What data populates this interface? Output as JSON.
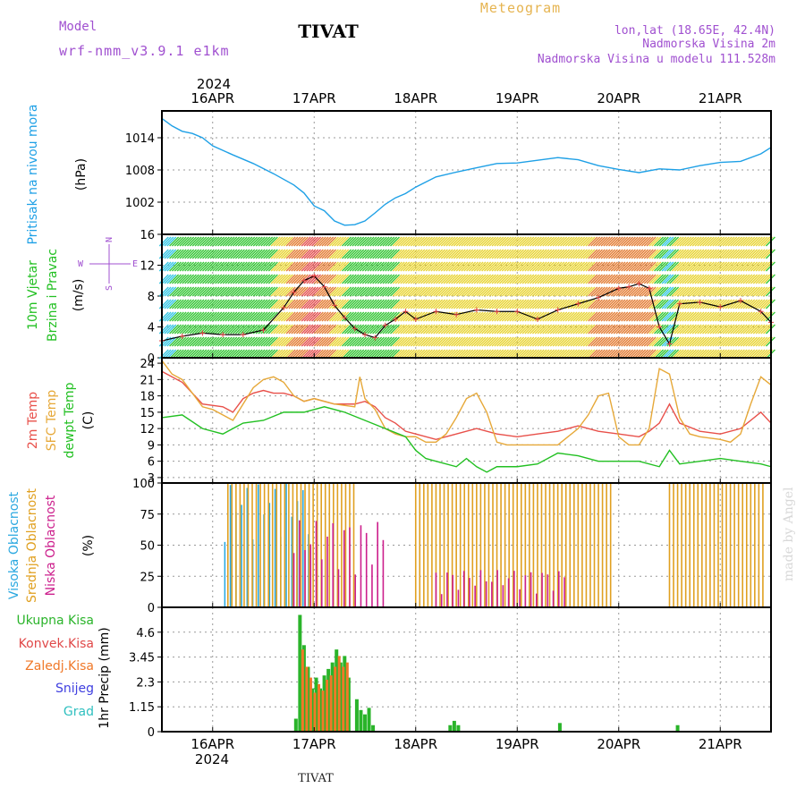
{
  "header": {
    "center_title": "Meteogram",
    "station": "TIVAT",
    "model_label": "Model",
    "model_name": "wrf-nmm_v3.9.1  e1km",
    "lonlat": "lon,lat (18.65E, 42.4N)",
    "altitude": "Nadmorska Visina 2m",
    "model_altitude": "Nadmorska Visina u modelu 111.528m",
    "watermark": "made by Angel",
    "footer_station": "TIVAT"
  },
  "colors": {
    "pressure": "#1ea0e6",
    "wind_speed": "#000000",
    "temp_2m": "#e8504a",
    "temp_sfc": "#e6a838",
    "dewpoint": "#22c022",
    "cloud_high": "#2aa8e0",
    "cloud_mid": "#e0a020",
    "cloud_low": "#cc1f8c",
    "precip_total": "#2ab42a",
    "precip_conv": "#e04848",
    "precip_frz": "#f07828",
    "snow": "#4040e0",
    "graupel": "#30c0c0",
    "header_purple": "#a050d0",
    "header_gold": "#e6b450"
  },
  "chart_data": {
    "type": "line",
    "time_axis": {
      "year": "2024",
      "date_labels": [
        "16APR",
        "17APR",
        "18APR",
        "19APR",
        "20APR",
        "21APR"
      ],
      "start_day": 15.5,
      "end_day": 21.5
    },
    "panels": [
      {
        "id": "pressure",
        "ylabel": "Pritisak na nivou mora",
        "unit": "(hPa)",
        "yticks": [
          "1014",
          "1008",
          "1002"
        ],
        "ylim": [
          996,
          1019
        ],
        "series": [
          {
            "name": "pressure",
            "x": [
              15.5,
              15.6,
              15.7,
              15.8,
              15.9,
              16.0,
              16.2,
              16.4,
              16.6,
              16.8,
              16.9,
              17.0,
              17.1,
              17.2,
              17.3,
              17.4,
              17.5,
              17.6,
              17.7,
              17.8,
              17.9,
              18.0,
              18.2,
              18.4,
              18.6,
              18.8,
              19.0,
              19.2,
              19.4,
              19.6,
              19.8,
              20.0,
              20.2,
              20.4,
              20.6,
              20.8,
              21.0,
              21.2,
              21.4,
              21.5
            ],
            "y": [
              1017.6,
              1016.2,
              1015.2,
              1014.8,
              1014.0,
              1012.5,
              1010.8,
              1009.2,
              1007.3,
              1005.2,
              1003.7,
              1001.3,
              1000.4,
              998.5,
              997.7,
              997.8,
              998.5,
              1000.0,
              1001.6,
              1002.8,
              1003.6,
              1004.8,
              1006.7,
              1007.6,
              1008.4,
              1009.2,
              1009.3,
              1009.8,
              1010.3,
              1009.9,
              1008.8,
              1008.1,
              1007.5,
              1008.2,
              1008.0,
              1008.8,
              1009.4,
              1009.6,
              1011.0,
              1012.2
            ]
          }
        ]
      },
      {
        "id": "wind",
        "ylabel": "10m Vjetar",
        "ylabel2": "Brzina i Pravac",
        "unit": "(m/s)",
        "direction_legend": {
          "w": "W",
          "e": "E",
          "n": "N",
          "s": "S"
        },
        "yticks": [
          "16",
          "12",
          "8",
          "4",
          "0"
        ],
        "ylim": [
          0,
          16
        ],
        "series": [
          {
            "name": "wind_speed",
            "x": [
              15.5,
              15.7,
              15.9,
              16.1,
              16.3,
              16.5,
              16.7,
              16.8,
              16.9,
              17.0,
              17.1,
              17.2,
              17.3,
              17.4,
              17.5,
              17.6,
              17.7,
              17.8,
              17.9,
              18.0,
              18.2,
              18.4,
              18.6,
              18.8,
              19.0,
              19.2,
              19.4,
              19.6,
              19.8,
              20.0,
              20.1,
              20.2,
              20.3,
              20.4,
              20.5,
              20.6,
              20.8,
              21.0,
              21.2,
              21.4,
              21.5
            ],
            "y": [
              2.2,
              2.8,
              3.2,
              3.0,
              3.0,
              3.6,
              6.5,
              8.5,
              10.0,
              10.6,
              9.2,
              6.8,
              5.2,
              3.8,
              3.0,
              2.6,
              4.2,
              5.0,
              6.0,
              5.0,
              6.0,
              5.6,
              6.2,
              6.0,
              6.0,
              5.0,
              6.2,
              7.0,
              7.8,
              9.0,
              9.2,
              9.6,
              9.0,
              4.0,
              1.8,
              7.0,
              7.2,
              6.6,
              7.4,
              6.0,
              4.6
            ]
          }
        ]
      },
      {
        "id": "temperature",
        "ylabel": "2m Temp",
        "ylabel2": "SFC Temp",
        "ylabel3": "dewpt Temp",
        "unit": "(C)",
        "yticks": [
          "24",
          "21",
          "18",
          "15",
          "12",
          "9",
          "6",
          "3"
        ],
        "ylim": [
          2,
          25
        ],
        "series": [
          {
            "name": "2m Temp",
            "x": [
              15.5,
              15.7,
              15.9,
              16.1,
              16.2,
              16.3,
              16.4,
              16.5,
              16.6,
              16.7,
              16.8,
              16.9,
              17.0,
              17.2,
              17.4,
              17.5,
              17.6,
              17.7,
              17.8,
              17.9,
              18.0,
              18.2,
              18.4,
              18.6,
              18.8,
              19.0,
              19.2,
              19.4,
              19.6,
              19.8,
              20.0,
              20.2,
              20.3,
              20.4,
              20.5,
              20.6,
              20.8,
              21.0,
              21.2,
              21.4,
              21.5
            ],
            "y": [
              22.5,
              20.5,
              16.5,
              16.0,
              15.0,
              17.5,
              18.5,
              19.0,
              18.5,
              18.5,
              18.0,
              17.0,
              17.5,
              16.5,
              16.5,
              17.0,
              16.0,
              14.0,
              13.0,
              11.5,
              11.0,
              10.0,
              11.0,
              12.0,
              11.0,
              10.5,
              11.0,
              11.5,
              12.5,
              11.5,
              11.0,
              10.5,
              11.5,
              13.0,
              16.5,
              13.0,
              11.5,
              11.0,
              12.0,
              15.0,
              13.0
            ]
          },
          {
            "name": "SFC Temp",
            "x": [
              15.5,
              15.6,
              15.7,
              15.9,
              16.0,
              16.1,
              16.2,
              16.3,
              16.4,
              16.5,
              16.6,
              16.7,
              16.8,
              16.9,
              17.0,
              17.2,
              17.4,
              17.45,
              17.5,
              17.6,
              17.7,
              17.8,
              17.9,
              18.0,
              18.1,
              18.2,
              18.3,
              18.4,
              18.5,
              18.6,
              18.7,
              18.8,
              18.9,
              19.0,
              19.2,
              19.4,
              19.6,
              19.7,
              19.8,
              19.9,
              20.0,
              20.1,
              20.2,
              20.3,
              20.4,
              20.5,
              20.6,
              20.7,
              20.8,
              21.0,
              21.1,
              21.2,
              21.3,
              21.4,
              21.5
            ],
            "y": [
              24.5,
              22.0,
              21.0,
              16.0,
              15.5,
              14.5,
              13.5,
              16.5,
              19.5,
              21.0,
              21.5,
              20.5,
              18.0,
              17.0,
              17.5,
              16.5,
              16.0,
              21.5,
              17.5,
              15.5,
              12.0,
              11.0,
              10.5,
              10.5,
              9.5,
              9.5,
              11.0,
              14.0,
              17.5,
              18.5,
              15.0,
              9.5,
              9.0,
              9.0,
              9.0,
              9.0,
              12.0,
              14.5,
              18.0,
              18.5,
              10.5,
              9.0,
              9.0,
              12.0,
              23.0,
              22.0,
              14.0,
              11.0,
              10.5,
              10.0,
              9.5,
              11.0,
              16.5,
              21.5,
              20.0
            ]
          },
          {
            "name": "dewpt Temp",
            "x": [
              15.5,
              15.7,
              15.9,
              16.1,
              16.3,
              16.5,
              16.7,
              16.9,
              17.1,
              17.3,
              17.5,
              17.7,
              17.9,
              18.0,
              18.1,
              18.2,
              18.4,
              18.5,
              18.6,
              18.7,
              18.8,
              19.0,
              19.2,
              19.4,
              19.6,
              19.8,
              20.0,
              20.2,
              20.4,
              20.5,
              20.6,
              20.8,
              21.0,
              21.2,
              21.4,
              21.5
            ],
            "y": [
              14.0,
              14.5,
              12.0,
              11.0,
              13.0,
              13.5,
              15.0,
              15.0,
              16.0,
              15.0,
              13.5,
              12.0,
              10.5,
              8.0,
              6.5,
              6.0,
              5.0,
              6.5,
              5.0,
              4.0,
              5.0,
              5.0,
              5.5,
              7.5,
              7.0,
              6.0,
              6.0,
              6.0,
              5.0,
              8.0,
              5.5,
              6.0,
              6.5,
              6.0,
              5.5,
              5.0
            ]
          }
        ]
      },
      {
        "id": "clouds",
        "ylabel": "Visoka Oblacnost",
        "ylabel2": "Srednja Oblacnost",
        "ylabel3": "Niska Oblacnost",
        "unit": "(%)",
        "yticks": [
          "100",
          "75",
          "50",
          "25",
          "0"
        ],
        "ylim": [
          0,
          100
        ],
        "periods": [
          {
            "name": "Visoka Oblacnost",
            "from": 16.12,
            "to": 16.95,
            "value": 100
          },
          {
            "name": "Srednja Oblacnost",
            "from": 16.15,
            "to": 17.4,
            "value": 100
          },
          {
            "name": "Srednja Oblacnost",
            "from": 18.0,
            "to": 19.95,
            "value": 100
          },
          {
            "name": "Srednja Oblacnost",
            "from": 20.5,
            "to": 21.45,
            "value": 100
          },
          {
            "name": "Niska Oblacnost",
            "from": 16.8,
            "to": 17.7,
            "value": 70
          },
          {
            "name": "Niska Oblacnost",
            "from": 18.2,
            "to": 19.5,
            "value": 30
          }
        ]
      },
      {
        "id": "precip",
        "ylabel": "1hr Precip",
        "unit": "(mm)",
        "legend": [
          "Ukupna Kisa",
          "Konvek.Kisa",
          "Zaledj.Kisa",
          "Snijeg",
          "Grad"
        ],
        "yticks": [
          "4.6",
          "3.45",
          "2.3",
          "1.15",
          "0"
        ],
        "ylim": [
          0,
          5.75
        ],
        "series": [
          {
            "name": "Ukupna Kisa",
            "x": [
              16.82,
              16.86,
              16.9,
              16.94,
              16.98,
              17.02,
              17.06,
              17.1,
              17.14,
              17.18,
              17.22,
              17.26,
              17.3,
              17.34,
              17.42,
              17.46,
              17.5,
              17.54,
              17.58,
              18.34,
              18.38,
              18.42,
              19.42,
              20.58
            ],
            "y": [
              0.6,
              5.4,
              4.0,
              3.0,
              2.0,
              2.5,
              2.0,
              2.6,
              2.9,
              3.2,
              3.8,
              3.2,
              3.5,
              2.5,
              1.5,
              1.0,
              0.8,
              1.1,
              0.3,
              0.3,
              0.5,
              0.3,
              0.4,
              0.3
            ]
          },
          {
            "name": "Konvek.Kisa",
            "x": [
              16.86,
              16.9,
              16.94,
              16.98,
              17.02,
              17.06,
              17.1,
              17.14,
              17.18,
              17.22,
              17.26,
              17.3
            ],
            "y": [
              3.8,
              3.0,
              2.5,
              1.8,
              2.2,
              1.9,
              2.4,
              2.6,
              3.0,
              3.5,
              3.0,
              3.2
            ]
          }
        ]
      }
    ]
  }
}
